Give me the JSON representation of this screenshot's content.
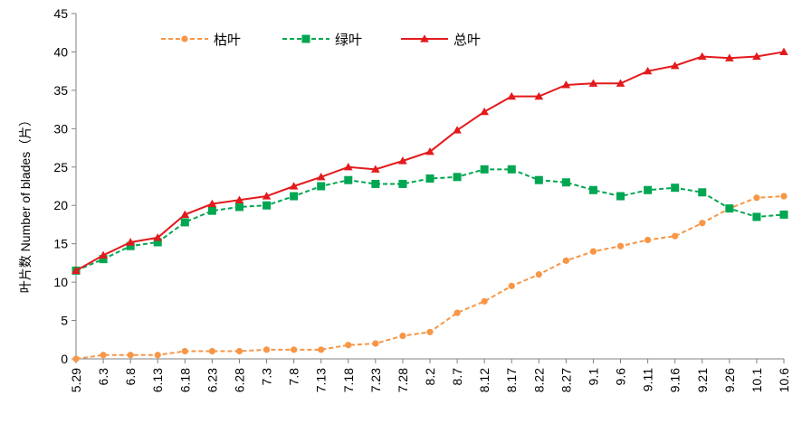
{
  "chart_data": {
    "type": "line",
    "title": "",
    "xlabel": "",
    "ylabel": "叶片数 Number of blades（片）",
    "ylim": [
      0,
      45
    ],
    "yticks": [
      0,
      5,
      10,
      15,
      20,
      25,
      30,
      35,
      40,
      45
    ],
    "grid": false,
    "legend_position": "top",
    "categories": [
      "5.29",
      "6.3",
      "6.8",
      "6.13",
      "6.18",
      "6.23",
      "6.28",
      "7.3",
      "7.8",
      "7.13",
      "7.18",
      "7.23",
      "7.28",
      "8.2",
      "8.7",
      "8.12",
      "8.17",
      "8.22",
      "8.27",
      "9.1",
      "9.6",
      "9.11",
      "9.16",
      "9.21",
      "9.26",
      "10.1",
      "10.6"
    ],
    "series": [
      {
        "name": "枯叶",
        "color": "#F79646",
        "marker": "circle",
        "dash": "dashed",
        "values": [
          0,
          0.5,
          0.5,
          0.5,
          1,
          1,
          1,
          1.2,
          1.2,
          1.2,
          1.8,
          2,
          3,
          3.5,
          6,
          7.5,
          9.5,
          11,
          12.8,
          14,
          14.7,
          15.5,
          16,
          17.7,
          19.6,
          21,
          21.2
        ]
      },
      {
        "name": "绿叶",
        "color": "#00A651",
        "marker": "square",
        "dash": "dashed",
        "values": [
          11.5,
          13,
          14.7,
          15.2,
          17.8,
          19.3,
          19.8,
          20,
          21.2,
          22.5,
          23.3,
          22.8,
          22.8,
          23.5,
          23.7,
          24.7,
          24.7,
          23.3,
          23,
          22,
          21.2,
          22,
          22.3,
          21.7,
          19.6,
          18.5,
          18.8
        ]
      },
      {
        "name": "总叶",
        "color": "#E31A1C",
        "marker": "triangle",
        "dash": "solid",
        "values": [
          11.5,
          13.5,
          15.2,
          15.8,
          18.8,
          20.2,
          20.7,
          21.2,
          22.5,
          23.7,
          25,
          24.7,
          25.8,
          27,
          29.8,
          32.2,
          34.2,
          34.2,
          35.7,
          35.9,
          35.9,
          37.5,
          38.2,
          39.4,
          39.2,
          39.4,
          40
        ]
      }
    ]
  }
}
